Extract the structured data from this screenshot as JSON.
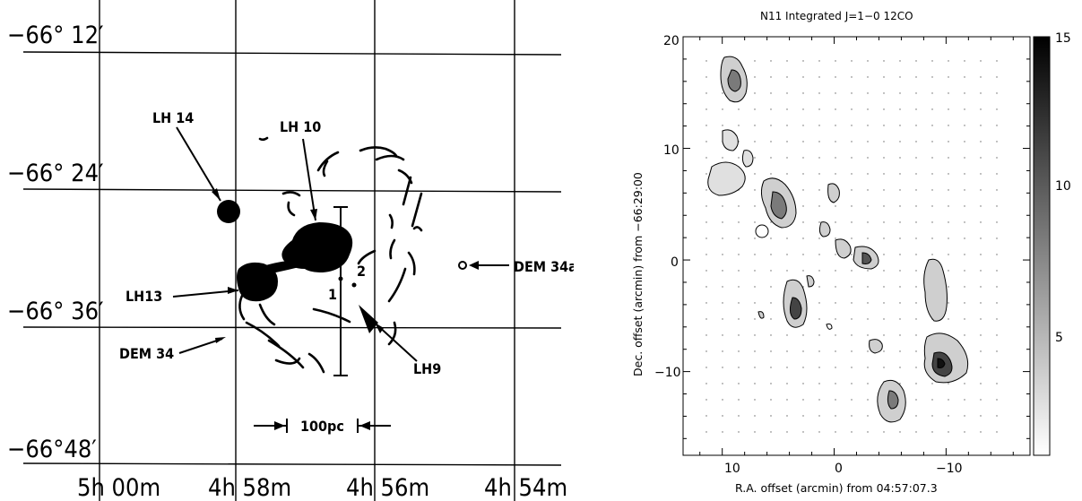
{
  "left_map": {
    "dec_labels": [
      "−66° 12′",
      "−66° 24′",
      "−66° 36′",
      "−66°48′"
    ],
    "ra_labels": [
      "5h 00m",
      "4h 58m",
      "4h 56m",
      "4h 54m"
    ],
    "objects": {
      "lh14": "LH 14",
      "lh10": "LH 10",
      "lh13": "LH13",
      "dem34": "DEM 34",
      "lh9": "LH9",
      "dem34a": "DEM 34a",
      "star1": "1",
      "star2": "2"
    },
    "scale_bar": "100pc"
  },
  "right_map": {
    "title": "N11 Integrated J=1−0 12CO",
    "xlabel": "R.A. offset (arcmin) from 04:57:07.3",
    "ylabel": "Dec. offset (arcmin) from −66:29:00",
    "xticks": [
      "10",
      "0",
      "−10"
    ],
    "yticks": [
      "20",
      "10",
      "0",
      "−10"
    ],
    "colorbar_ticks": [
      "15",
      "10",
      "5"
    ],
    "colorbar_range": [
      1,
      15
    ],
    "x_range": [
      13.5,
      -17.5
    ],
    "y_range": [
      -17.5,
      20
    ]
  }
}
